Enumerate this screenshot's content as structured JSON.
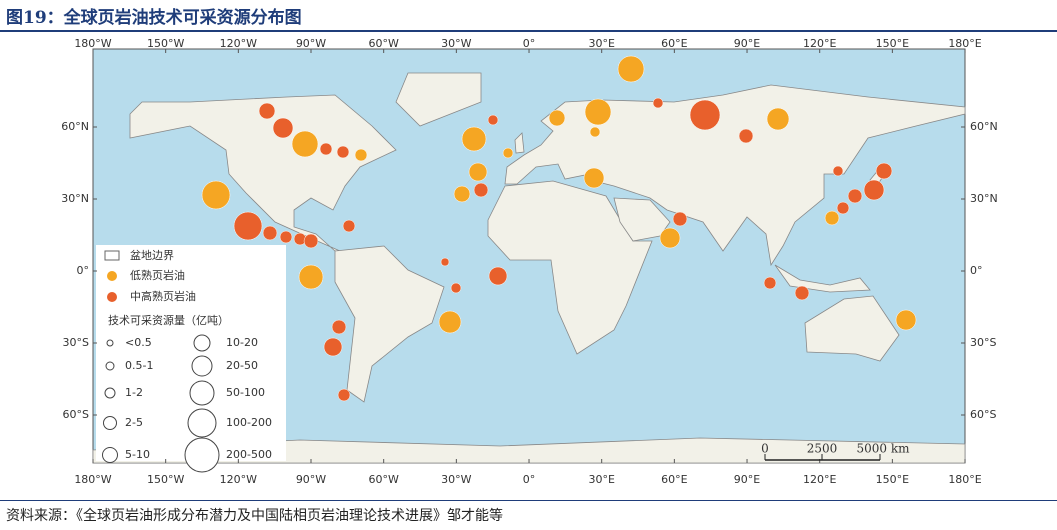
{
  "header": {
    "title": "图19：全球页岩油技术可采资源分布图"
  },
  "map": {
    "lon_labels": [
      "180°W",
      "150°W",
      "120°W",
      "90°W",
      "60°W",
      "30°W",
      "0°",
      "30°E",
      "60°E",
      "90°E",
      "120°E",
      "150°E",
      "180°E"
    ],
    "lat_labels": [
      "60°N",
      "30°N",
      "0°",
      "30°S",
      "60°S"
    ],
    "legend": {
      "basin": "盆地边界",
      "low": "低熟页岩油",
      "high": "中高熟页岩油",
      "size_title": "技术可采资源量（亿吨）",
      "sizes": [
        "<0.5",
        "0.5-1",
        "1-2",
        "2-5",
        "5-10",
        "10-20",
        "20-50",
        "50-100",
        "100-200",
        "200-500"
      ]
    },
    "scale": [
      "0",
      "2500",
      "5000 km"
    ]
  },
  "footer": {
    "source": "资料来源：《全球页岩油形成分布潜力及中国陆相页岩油理论技术进展》邹才能等"
  }
}
